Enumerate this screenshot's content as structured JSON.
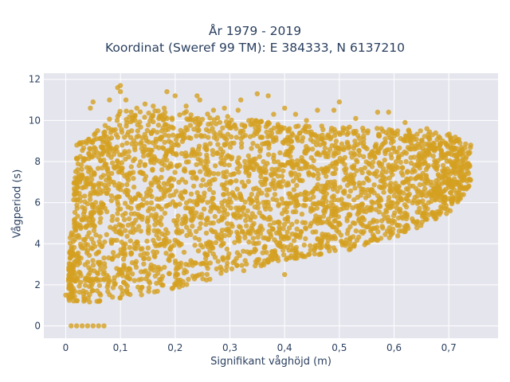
{
  "chart_data": {
    "type": "scatter",
    "title": "År 1979 - 2019",
    "subtitle": "Koordinat (Sweref 99 TM): E 384333, N 6137210",
    "xlabel": "Signifikant våghöjd (m)",
    "ylabel": "Vågperiod (s)",
    "xlim": [
      -0.04,
      0.79
    ],
    "ylim": [
      -0.6,
      12.3
    ],
    "x_ticks": [
      0,
      0.1,
      0.2,
      0.3,
      0.4,
      0.5,
      0.6,
      0.7
    ],
    "x_tick_labels": [
      "0",
      "0,1",
      "0,2",
      "0,3",
      "0,4",
      "0,5",
      "0,6",
      "0,7"
    ],
    "y_ticks": [
      0,
      2,
      4,
      6,
      8,
      10,
      12
    ],
    "y_tick_labels": [
      "0",
      "2",
      "4",
      "6",
      "8",
      "10",
      "12"
    ],
    "grid": true,
    "marker_color": "#d4a020",
    "plot_background": "#e5e5ee",
    "envelope": {
      "x": [
        0.0,
        0.02,
        0.05,
        0.1,
        0.2,
        0.3,
        0.4,
        0.5,
        0.6,
        0.7,
        0.74
      ],
      "y_lower": [
        1.2,
        1.2,
        1.15,
        1.3,
        1.8,
        2.5,
        3.2,
        3.6,
        4.2,
        5.5,
        6.8
      ],
      "y_upper": [
        1.5,
        8.8,
        9.5,
        10.5,
        10.5,
        10.2,
        9.8,
        9.7,
        9.6,
        9.4,
        8.8
      ]
    },
    "outliers": [
      {
        "x": 0.045,
        "y": 10.6
      },
      {
        "x": 0.05,
        "y": 10.9
      },
      {
        "x": 0.08,
        "y": 11.0
      },
      {
        "x": 0.095,
        "y": 11.6
      },
      {
        "x": 0.1,
        "y": 11.7
      },
      {
        "x": 0.1,
        "y": 11.4
      },
      {
        "x": 0.11,
        "y": 11.0
      },
      {
        "x": 0.13,
        "y": 10.6
      },
      {
        "x": 0.145,
        "y": 10.8
      },
      {
        "x": 0.16,
        "y": 10.7
      },
      {
        "x": 0.18,
        "y": 10.6
      },
      {
        "x": 0.185,
        "y": 11.4
      },
      {
        "x": 0.2,
        "y": 11.2
      },
      {
        "x": 0.22,
        "y": 10.7
      },
      {
        "x": 0.24,
        "y": 11.2
      },
      {
        "x": 0.245,
        "y": 11.0
      },
      {
        "x": 0.27,
        "y": 10.5
      },
      {
        "x": 0.29,
        "y": 10.6
      },
      {
        "x": 0.32,
        "y": 11.0
      },
      {
        "x": 0.315,
        "y": 10.5
      },
      {
        "x": 0.35,
        "y": 11.3
      },
      {
        "x": 0.37,
        "y": 11.2
      },
      {
        "x": 0.38,
        "y": 10.3
      },
      {
        "x": 0.4,
        "y": 10.6
      },
      {
        "x": 0.42,
        "y": 10.3
      },
      {
        "x": 0.44,
        "y": 10.0
      },
      {
        "x": 0.46,
        "y": 10.5
      },
      {
        "x": 0.49,
        "y": 10.5
      },
      {
        "x": 0.5,
        "y": 10.9
      },
      {
        "x": 0.53,
        "y": 10.1
      },
      {
        "x": 0.57,
        "y": 10.4
      },
      {
        "x": 0.59,
        "y": 10.4
      },
      {
        "x": 0.62,
        "y": 9.9
      },
      {
        "x": 0.66,
        "y": 9.6
      },
      {
        "x": 0.74,
        "y": 8.8
      },
      {
        "x": 0.4,
        "y": 2.5
      },
      {
        "x": 0.0,
        "y": 1.5
      }
    ],
    "zero_points": [
      {
        "x": 0.01,
        "y": 0
      },
      {
        "x": 0.02,
        "y": 0
      },
      {
        "x": 0.03,
        "y": 0
      },
      {
        "x": 0.04,
        "y": 0
      },
      {
        "x": 0.05,
        "y": 0
      },
      {
        "x": 0.06,
        "y": 0
      },
      {
        "x": 0.07,
        "y": 0
      }
    ]
  }
}
